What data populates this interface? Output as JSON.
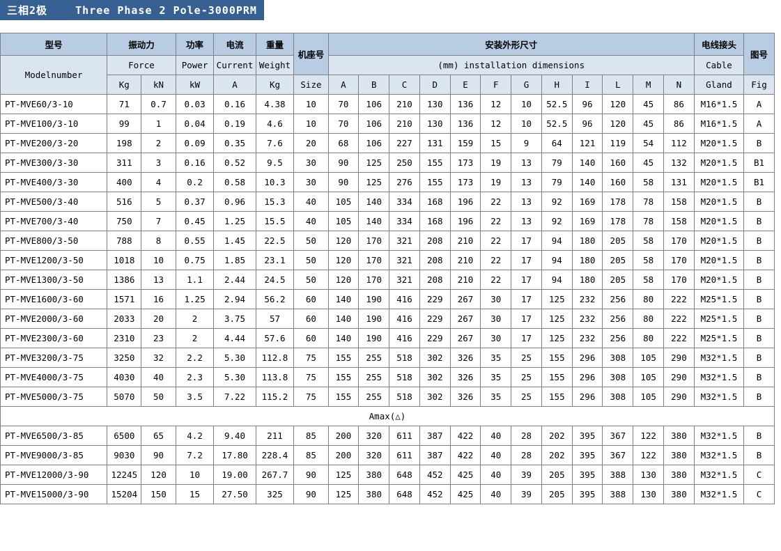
{
  "title_cn": "三相2极",
  "title_en": "Three Phase 2 Pole-3000PRM",
  "headers": {
    "model_cn": "型号",
    "model_en": "Modelnumber",
    "force_cn": "振动力",
    "force_en": "Force",
    "force_kg": "Kg",
    "force_kn": "kN",
    "power_cn": "功率",
    "power_en": "Power",
    "power_unit": "kW",
    "current_cn": "电流",
    "current_en": "Current",
    "current_unit": "A",
    "weight_cn": "重量",
    "weight_en": "Weight",
    "weight_unit": "Kg",
    "size_cn": "机座号",
    "size_en": "Size",
    "install_cn": "安装外形尺寸",
    "install_en": "(mm) installation dimensions",
    "dims": [
      "A",
      "B",
      "C",
      "D",
      "E",
      "F",
      "G",
      "H",
      "I",
      "L",
      "M",
      "N"
    ],
    "cable_cn": "电线接头",
    "cable_en": "Cable",
    "cable_sub": "Gland",
    "fig_cn": "图号",
    "fig_en": "Fig"
  },
  "separator": "Amax(△)",
  "rows1": [
    {
      "m": "PT-MVE60/3-10",
      "kg": "71",
      "kn": "0.7",
      "pw": "0.03",
      "cur": "0.16",
      "wt": "4.38",
      "sz": "10",
      "d": [
        "70",
        "106",
        "210",
        "130",
        "136",
        "12",
        "10",
        "52.5",
        "96",
        "120",
        "45",
        "86"
      ],
      "cab": "M16*1.5",
      "fig": "A"
    },
    {
      "m": "PT-MVE100/3-10",
      "kg": "99",
      "kn": "1",
      "pw": "0.04",
      "cur": "0.19",
      "wt": "4.6",
      "sz": "10",
      "d": [
        "70",
        "106",
        "210",
        "130",
        "136",
        "12",
        "10",
        "52.5",
        "96",
        "120",
        "45",
        "86"
      ],
      "cab": "M16*1.5",
      "fig": "A"
    },
    {
      "m": "PT-MVE200/3-20",
      "kg": "198",
      "kn": "2",
      "pw": "0.09",
      "cur": "0.35",
      "wt": "7.6",
      "sz": "20",
      "d": [
        "68",
        "106",
        "227",
        "131",
        "159",
        "15",
        "9",
        "64",
        "121",
        "119",
        "54",
        "112"
      ],
      "cab": "M20*1.5",
      "fig": "B"
    },
    {
      "m": "PT-MVE300/3-30",
      "kg": "311",
      "kn": "3",
      "pw": "0.16",
      "cur": "0.52",
      "wt": "9.5",
      "sz": "30",
      "d": [
        "90",
        "125",
        "250",
        "155",
        "173",
        "19",
        "13",
        "79",
        "140",
        "160",
        "45",
        "132"
      ],
      "cab": "M20*1.5",
      "fig": "B1"
    },
    {
      "m": "PT-MVE400/3-30",
      "kg": "400",
      "kn": "4",
      "pw": "0.2",
      "cur": "0.58",
      "wt": "10.3",
      "sz": "30",
      "d": [
        "90",
        "125",
        "276",
        "155",
        "173",
        "19",
        "13",
        "79",
        "140",
        "160",
        "58",
        "131"
      ],
      "cab": "M20*1.5",
      "fig": "B1"
    },
    {
      "m": "PT-MVE500/3-40",
      "kg": "516",
      "kn": "5",
      "pw": "0.37",
      "cur": "0.96",
      "wt": "15.3",
      "sz": "40",
      "d": [
        "105",
        "140",
        "334",
        "168",
        "196",
        "22",
        "13",
        "92",
        "169",
        "178",
        "78",
        "158"
      ],
      "cab": "M20*1.5",
      "fig": "B"
    },
    {
      "m": "PT-MVE700/3-40",
      "kg": "750",
      "kn": "7",
      "pw": "0.45",
      "cur": "1.25",
      "wt": "15.5",
      "sz": "40",
      "d": [
        "105",
        "140",
        "334",
        "168",
        "196",
        "22",
        "13",
        "92",
        "169",
        "178",
        "78",
        "158"
      ],
      "cab": "M20*1.5",
      "fig": "B"
    },
    {
      "m": "PT-MVE800/3-50",
      "kg": "788",
      "kn": "8",
      "pw": "0.55",
      "cur": "1.45",
      "wt": "22.5",
      "sz": "50",
      "d": [
        "120",
        "170",
        "321",
        "208",
        "210",
        "22",
        "17",
        "94",
        "180",
        "205",
        "58",
        "170"
      ],
      "cab": "M20*1.5",
      "fig": "B"
    },
    {
      "m": "PT-MVE1200/3-50",
      "kg": "1018",
      "kn": "10",
      "pw": "0.75",
      "cur": "1.85",
      "wt": "23.1",
      "sz": "50",
      "d": [
        "120",
        "170",
        "321",
        "208",
        "210",
        "22",
        "17",
        "94",
        "180",
        "205",
        "58",
        "170"
      ],
      "cab": "M20*1.5",
      "fig": "B"
    },
    {
      "m": "PT-MVE1300/3-50",
      "kg": "1386",
      "kn": "13",
      "pw": "1.1",
      "cur": "2.44",
      "wt": "24.5",
      "sz": "50",
      "d": [
        "120",
        "170",
        "321",
        "208",
        "210",
        "22",
        "17",
        "94",
        "180",
        "205",
        "58",
        "170"
      ],
      "cab": "M20*1.5",
      "fig": "B"
    },
    {
      "m": "PT-MVE1600/3-60",
      "kg": "1571",
      "kn": "16",
      "pw": "1.25",
      "cur": "2.94",
      "wt": "56.2",
      "sz": "60",
      "d": [
        "140",
        "190",
        "416",
        "229",
        "267",
        "30",
        "17",
        "125",
        "232",
        "256",
        "80",
        "222"
      ],
      "cab": "M25*1.5",
      "fig": "B"
    },
    {
      "m": "PT-MVE2000/3-60",
      "kg": "2033",
      "kn": "20",
      "pw": "2",
      "cur": "3.75",
      "wt": "57",
      "sz": "60",
      "d": [
        "140",
        "190",
        "416",
        "229",
        "267",
        "30",
        "17",
        "125",
        "232",
        "256",
        "80",
        "222"
      ],
      "cab": "M25*1.5",
      "fig": "B"
    },
    {
      "m": "PT-MVE2300/3-60",
      "kg": "2310",
      "kn": "23",
      "pw": "2",
      "cur": "4.44",
      "wt": "57.6",
      "sz": "60",
      "d": [
        "140",
        "190",
        "416",
        "229",
        "267",
        "30",
        "17",
        "125",
        "232",
        "256",
        "80",
        "222"
      ],
      "cab": "M25*1.5",
      "fig": "B"
    },
    {
      "m": "PT-MVE3200/3-75",
      "kg": "3250",
      "kn": "32",
      "pw": "2.2",
      "cur": "5.30",
      "wt": "112.8",
      "sz": "75",
      "d": [
        "155",
        "255",
        "518",
        "302",
        "326",
        "35",
        "25",
        "155",
        "296",
        "308",
        "105",
        "290"
      ],
      "cab": "M32*1.5",
      "fig": "B"
    },
    {
      "m": "PT-MVE4000/3-75",
      "kg": "4030",
      "kn": "40",
      "pw": "2.3",
      "cur": "5.30",
      "wt": "113.8",
      "sz": "75",
      "d": [
        "155",
        "255",
        "518",
        "302",
        "326",
        "35",
        "25",
        "155",
        "296",
        "308",
        "105",
        "290"
      ],
      "cab": "M32*1.5",
      "fig": "B"
    },
    {
      "m": "PT-MVE5000/3-75",
      "kg": "5070",
      "kn": "50",
      "pw": "3.5",
      "cur": "7.22",
      "wt": "115.2",
      "sz": "75",
      "d": [
        "155",
        "255",
        "518",
        "302",
        "326",
        "35",
        "25",
        "155",
        "296",
        "308",
        "105",
        "290"
      ],
      "cab": "M32*1.5",
      "fig": "B"
    }
  ],
  "rows2": [
    {
      "m": "PT-MVE6500/3-85",
      "kg": "6500",
      "kn": "65",
      "pw": "4.2",
      "cur": "9.40",
      "wt": "211",
      "sz": "85",
      "d": [
        "200",
        "320",
        "611",
        "387",
        "422",
        "40",
        "28",
        "202",
        "395",
        "367",
        "122",
        "380"
      ],
      "cab": "M32*1.5",
      "fig": "B"
    },
    {
      "m": "PT-MVE9000/3-85",
      "kg": "9030",
      "kn": "90",
      "pw": "7.2",
      "cur": "17.80",
      "wt": "228.4",
      "sz": "85",
      "d": [
        "200",
        "320",
        "611",
        "387",
        "422",
        "40",
        "28",
        "202",
        "395",
        "367",
        "122",
        "380"
      ],
      "cab": "M32*1.5",
      "fig": "B"
    },
    {
      "m": "PT-MVE12000/3-90",
      "kg": "12245",
      "kn": "120",
      "pw": "10",
      "cur": "19.00",
      "wt": "267.7",
      "sz": "90",
      "d": [
        "125",
        "380",
        "648",
        "452",
        "425",
        "40",
        "39",
        "205",
        "395",
        "388",
        "130",
        "380"
      ],
      "cab": "M32*1.5",
      "fig": "C"
    },
    {
      "m": "PT-MVE15000/3-90",
      "kg": "15204",
      "kn": "150",
      "pw": "15",
      "cur": "27.50",
      "wt": "325",
      "sz": "90",
      "d": [
        "125",
        "380",
        "648",
        "452",
        "425",
        "40",
        "39",
        "205",
        "395",
        "388",
        "130",
        "380"
      ],
      "cab": "M32*1.5",
      "fig": "C"
    }
  ]
}
